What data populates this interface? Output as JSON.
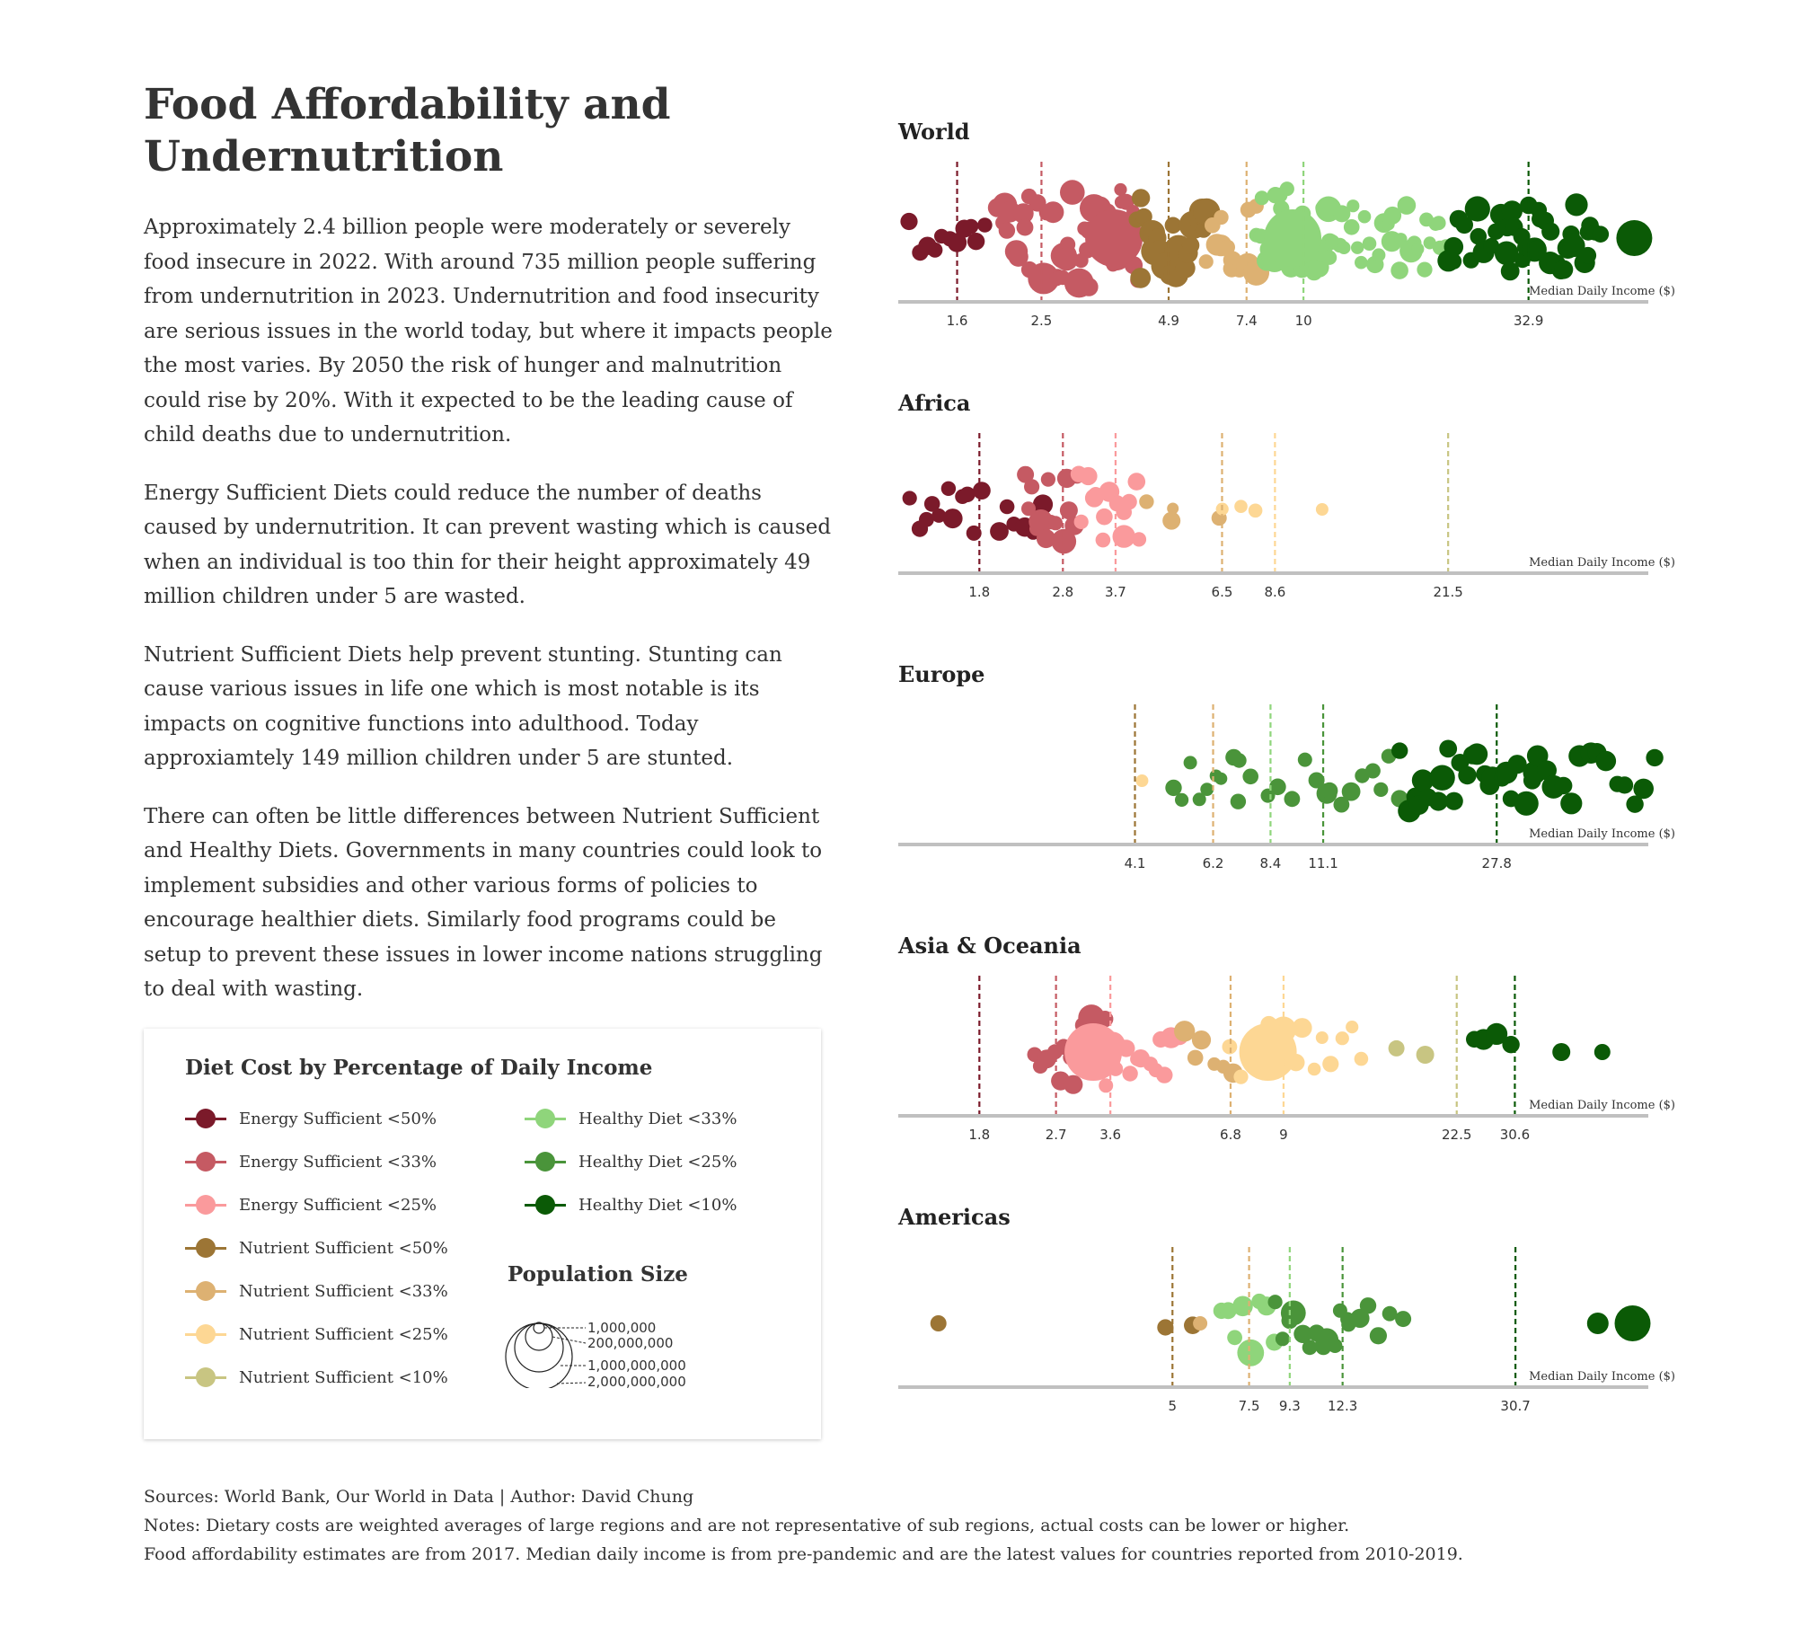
{
  "title": "Food Affordability and Undernutrition",
  "intro": [
    "Approximately 2.4 billion people were moderately or severely food insecure in 2022. With around 735 million people suffering from undernutrition in 2023. Undernutrition and food insecurity are serious issues in the world today, but where it impacts people the most varies. By 2050 the risk of hunger and malnutrition could rise by 20%. With it expected to be the leading cause of child deaths due to undernutrition.",
    "Energy Sufficient Diets could reduce the number of deaths caused by undernutrition. It can prevent wasting which is caused when an individual is too thin for their height approximately 49 million children under 5 are wasted.",
    "Nutrient Sufficient Diets help prevent stunting. Stunting can cause various issues in life one which is most notable is its impacts on cognitive functions into adulthood. Today approxiamtely 149 million children under 5 are stunted.",
    "There can often be little differences between Nutrient Sufficient and Healthy Diets. Governments in many countries could look to implement subsidies and other various forms of policies to encourage healthier diets. Similarly food programs could be setup to prevent these issues in lower income nations struggling to deal with wasting."
  ],
  "legend": {
    "title": "Diet Cost by Percentage of Daily Income",
    "items": [
      {
        "label": "Energy Sufficient <50%",
        "color": "#7b1a2a"
      },
      {
        "label": "Energy Sufficient <33%",
        "color": "#c55a63"
      },
      {
        "label": "Energy Sufficient <25%",
        "color": "#fa9a9c"
      },
      {
        "label": "Nutrient Sufficient <50%",
        "color": "#9c7535"
      },
      {
        "label": "Nutrient Sufficient <33%",
        "color": "#ddb172"
      },
      {
        "label": "Nutrient Sufficient <25%",
        "color": "#fdd794"
      },
      {
        "label": "Nutrient Sufficient <10%",
        "color": "#c8c582"
      },
      {
        "label": "Healthy Diet <33%",
        "color": "#8fd57b"
      },
      {
        "label": "Healthy Diet <25%",
        "color": "#4a943a"
      },
      {
        "label": "Healthy Diet <10%",
        "color": "#0b5a06"
      }
    ]
  },
  "population_size": {
    "title": "Population Size",
    "labels": [
      "1,000,000",
      "200,000,000",
      "1,000,000,000",
      "2,000,000,000"
    ]
  },
  "sources": [
    "Sources: World Bank, Our World in Data | Author: David Chung",
    "Notes: Dietary costs are weighted averages of large regions and are not representative of sub regions, actual costs can be lower or higher.",
    "Food affordability estimates are from 2017. Median daily income is from pre-pandemic and are the latest values for countries reported from 2010-2019."
  ],
  "chart_data": [
    {
      "type": "scatter",
      "title": "World",
      "xlabel": "Median Daily Income ($)",
      "thresholds": [
        {
          "x": 1.6,
          "category": 0
        },
        {
          "x": 2.5,
          "category": 1
        },
        {
          "x": 4.9,
          "category": 3
        },
        {
          "x": 7.4,
          "category": 4
        },
        {
          "x": 10,
          "category": 7
        },
        {
          "x": 32.9,
          "category": 9
        }
      ]
    },
    {
      "type": "scatter",
      "title": "Africa",
      "xlabel": "Median Daily Income ($)",
      "thresholds": [
        {
          "x": 1.8,
          "category": 0
        },
        {
          "x": 2.8,
          "category": 1
        },
        {
          "x": 3.7,
          "category": 2
        },
        {
          "x": 6.5,
          "category": 4
        },
        {
          "x": 8.6,
          "category": 5
        },
        {
          "x": 21.5,
          "category": 6
        }
      ]
    },
    {
      "type": "scatter",
      "title": "Europe",
      "xlabel": "Median Daily Income ($)",
      "thresholds": [
        {
          "x": 4.1,
          "category": 3
        },
        {
          "x": 6.2,
          "category": 4
        },
        {
          "x": 8.4,
          "category": 7
        },
        {
          "x": 11.1,
          "category": 8
        },
        {
          "x": 27.8,
          "category": 9
        }
      ]
    },
    {
      "type": "scatter",
      "title": "Asia & Oceania",
      "xlabel": "Median Daily Income ($)",
      "thresholds": [
        {
          "x": 1.8,
          "category": 0
        },
        {
          "x": 2.7,
          "category": 1
        },
        {
          "x": 3.6,
          "category": 2
        },
        {
          "x": 6.8,
          "category": 4
        },
        {
          "x": 9,
          "category": 5
        },
        {
          "x": 22.5,
          "category": 6
        },
        {
          "x": 30.6,
          "category": 9
        }
      ]
    },
    {
      "type": "scatter",
      "title": "Americas",
      "xlabel": "Median Daily Income ($)",
      "thresholds": [
        {
          "x": 5,
          "category": 3
        },
        {
          "x": 7.5,
          "category": 4
        },
        {
          "x": 9.3,
          "category": 7
        },
        {
          "x": 12.3,
          "category": 8
        },
        {
          "x": 30.7,
          "category": 9
        }
      ]
    }
  ]
}
